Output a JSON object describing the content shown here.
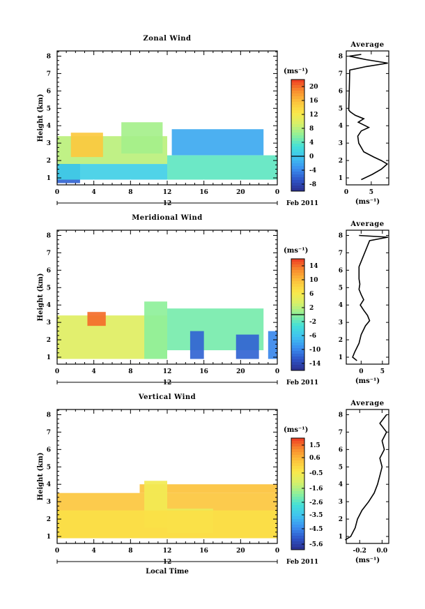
{
  "chart_data": [
    {
      "type": "heatmap",
      "title": "Zonal Wind",
      "ylabel": "Height (km)",
      "x_ticks": [
        "0",
        "4",
        "8",
        "12",
        "16",
        "20",
        "0"
      ],
      "xlim": [
        0,
        24
      ],
      "y_ticks": [
        "1",
        "2",
        "3",
        "4",
        "5",
        "6",
        "7",
        "8"
      ],
      "ylim": [
        0.6,
        8.3
      ],
      "day_label": "12",
      "date_label": "Feb 2011",
      "colorbar": {
        "unit": "(ms⁻¹)",
        "ticks": [
          "20",
          "16",
          "12",
          "8",
          "4",
          "0",
          "-4",
          "-8"
        ],
        "range": [
          -10,
          22
        ],
        "zero_line": 0
      },
      "regions": [
        {
          "x": [
            0,
            2.5
          ],
          "y": [
            0.7,
            1.8
          ],
          "value": -6
        },
        {
          "x": [
            0,
            12
          ],
          "y": [
            1.8,
            3.4
          ],
          "value": 8
        },
        {
          "x": [
            1.5,
            5
          ],
          "y": [
            2.2,
            3.6
          ],
          "value": 15
        },
        {
          "x": [
            7,
            11.5
          ],
          "y": [
            2.4,
            4.2
          ],
          "value": 7
        },
        {
          "x": [
            12.5,
            22.5
          ],
          "y": [
            2.3,
            3.8
          ],
          "value": -2
        },
        {
          "x": [
            12,
            24
          ],
          "y": [
            0.9,
            2.3
          ],
          "value": 4
        },
        {
          "x": [
            0,
            12
          ],
          "y": [
            0.9,
            1.8
          ],
          "value": 1
        }
      ],
      "average": {
        "title": "Average",
        "xlabel": "(ms⁻¹)",
        "x_ticks": [
          "0",
          "5"
        ],
        "xlim": [
          0,
          8.5
        ],
        "points": [
          [
            3,
            0.9
          ],
          [
            5.2,
            1.2
          ],
          [
            7.0,
            1.5
          ],
          [
            8.2,
            1.8
          ],
          [
            7.0,
            2.0
          ],
          [
            5.5,
            2.2
          ],
          [
            3.5,
            2.5
          ],
          [
            2.5,
            3.0
          ],
          [
            2.3,
            3.4
          ],
          [
            3.0,
            3.7
          ],
          [
            4.5,
            3.9
          ],
          [
            2.4,
            4.2
          ],
          [
            3.5,
            4.4
          ],
          [
            1.8,
            4.6
          ],
          [
            0.8,
            4.8
          ],
          [
            0.5,
            4.9
          ],
          [
            0.7,
            7.2
          ],
          [
            4.0,
            7.4
          ],
          [
            8.3,
            7.6
          ],
          [
            4.0,
            7.8
          ],
          [
            0.6,
            8.0
          ],
          [
            3.0,
            8.1
          ]
        ]
      }
    },
    {
      "type": "heatmap",
      "title": "Meridional Wind",
      "ylabel": "Height (km)",
      "x_ticks": [
        "0",
        "4",
        "8",
        "12",
        "16",
        "20",
        "0"
      ],
      "xlim": [
        0,
        24
      ],
      "y_ticks": [
        "1",
        "2",
        "3",
        "4",
        "5",
        "6",
        "7",
        "8"
      ],
      "ylim": [
        0.6,
        8.3
      ],
      "day_label": "12",
      "date_label": "Feb 2011",
      "colorbar": {
        "unit": "(ms⁻¹)",
        "ticks": [
          "14",
          "10",
          "6",
          "2",
          "-2",
          "-6",
          "-10",
          "-14"
        ],
        "range": [
          -16,
          16
        ],
        "zero_line": 0
      },
      "regions": [
        {
          "x": [
            0,
            12
          ],
          "y": [
            0.9,
            3.4
          ],
          "value": 4
        },
        {
          "x": [
            3.3,
            5.3
          ],
          "y": [
            2.8,
            3.6
          ],
          "value": 14
        },
        {
          "x": [
            9.5,
            12
          ],
          "y": [
            0.9,
            4.2
          ],
          "value": 0
        },
        {
          "x": [
            12,
            22.5
          ],
          "y": [
            1.4,
            3.8
          ],
          "value": -1
        },
        {
          "x": [
            14.5,
            16
          ],
          "y": [
            0.9,
            2.5
          ],
          "value": -12
        },
        {
          "x": [
            19.5,
            22
          ],
          "y": [
            0.9,
            2.3
          ],
          "value": -12
        },
        {
          "x": [
            23,
            24
          ],
          "y": [
            0.9,
            2.5
          ],
          "value": -10
        }
      ],
      "average": {
        "title": "Average",
        "xlabel": "(ms⁻¹)",
        "x_ticks": [
          "0",
          "5"
        ],
        "xlim": [
          -3.5,
          6.5
        ],
        "points": [
          [
            -1.0,
            0.8
          ],
          [
            -2.0,
            1.0
          ],
          [
            -1.5,
            1.3
          ],
          [
            -0.5,
            1.8
          ],
          [
            0,
            2.3
          ],
          [
            1.0,
            2.8
          ],
          [
            2.0,
            3.1
          ],
          [
            1.5,
            3.4
          ],
          [
            0.6,
            3.7
          ],
          [
            -0.2,
            4.0
          ],
          [
            0.6,
            4.3
          ],
          [
            0,
            4.6
          ],
          [
            -0.5,
            4.9
          ],
          [
            -0.3,
            5.2
          ],
          [
            -0.5,
            5.5
          ],
          [
            -0.5,
            6.2
          ],
          [
            2.0,
            7.7
          ],
          [
            6.3,
            7.9
          ],
          [
            -0.5,
            8.0
          ]
        ]
      }
    },
    {
      "type": "heatmap",
      "title": "Vertical Wind",
      "ylabel": "Height (km)",
      "xlabel": "Local Time",
      "x_ticks": [
        "0",
        "4",
        "8",
        "12",
        "16",
        "20",
        "0"
      ],
      "xlim": [
        0,
        24
      ],
      "y_ticks": [
        "1",
        "2",
        "3",
        "4",
        "5",
        "6",
        "7",
        "8"
      ],
      "ylim": [
        0.6,
        8.3
      ],
      "day_label": "12",
      "date_label": "Feb 2011",
      "colorbar": {
        "unit": "(ms⁻¹)",
        "ticks": [
          "1.5",
          "0.6",
          "-0.5",
          "-1.6",
          "-2.6",
          "-3.5",
          "-4.5",
          "-5.6"
        ],
        "range": [
          -6,
          2
        ],
        "zero_line": null
      },
      "regions": [
        {
          "x": [
            0,
            24
          ],
          "y": [
            0.9,
            3.5
          ],
          "value": 0.3
        },
        {
          "x": [
            9,
            24
          ],
          "y": [
            3.5,
            4.0
          ],
          "value": 0.4
        },
        {
          "x": [
            12,
            17
          ],
          "y": [
            1.2,
            2.6
          ],
          "value": -0.8
        },
        {
          "x": [
            9.5,
            12
          ],
          "y": [
            1.5,
            4.2
          ],
          "value": -0.6
        },
        {
          "x": [
            0,
            24
          ],
          "y": [
            0.9,
            2.5
          ],
          "value": -0.2
        }
      ],
      "average": {
        "title": "Average",
        "xlabel": "(ms⁻¹)",
        "x_ticks": [
          "-0.2",
          "0.0"
        ],
        "xlim": [
          -0.32,
          0.06
        ],
        "points": [
          [
            -0.33,
            0.8
          ],
          [
            -0.28,
            1.0
          ],
          [
            -0.24,
            1.5
          ],
          [
            -0.22,
            2.0
          ],
          [
            -0.18,
            2.5
          ],
          [
            -0.12,
            3.0
          ],
          [
            -0.07,
            3.5
          ],
          [
            -0.04,
            4.0
          ],
          [
            -0.02,
            4.5
          ],
          [
            0.0,
            5.0
          ],
          [
            -0.02,
            5.5
          ],
          [
            0.02,
            6.0
          ],
          [
            0.0,
            6.5
          ],
          [
            0.04,
            7.0
          ],
          [
            -0.02,
            7.5
          ],
          [
            0.04,
            8.0
          ]
        ]
      }
    }
  ]
}
